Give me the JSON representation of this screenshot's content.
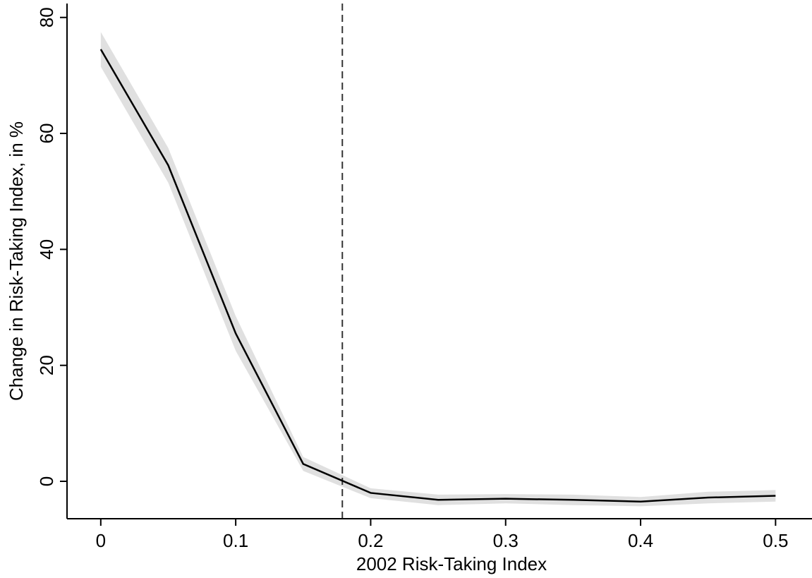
{
  "chart_data": {
    "type": "line",
    "xlabel": "2002 Risk-Taking Index",
    "ylabel": "Change in Risk-Taking Index, in %",
    "x": [
      0,
      0.05,
      0.1,
      0.15,
      0.2,
      0.25,
      0.3,
      0.35,
      0.4,
      0.45,
      0.5
    ],
    "values": [
      74.5,
      54.5,
      25.5,
      3,
      -2,
      -3.2,
      -3,
      -3.2,
      -3.5,
      -2.8,
      -2.5
    ],
    "color": "#000000",
    "band": {
      "upper": [
        77.5,
        57.5,
        28.5,
        4.2,
        -1.2,
        -2.3,
        -2.2,
        -2.3,
        -2.7,
        -1.8,
        -1.5
      ],
      "lower": [
        71.5,
        51.5,
        22.5,
        1.8,
        -2.9,
        -4.1,
        -3.8,
        -4.1,
        -4.3,
        -3.8,
        -3.5
      ],
      "color": "#e0e0e0"
    },
    "vline": 0.179,
    "xlim": [
      -0.025,
      0.527
    ],
    "xticks": [
      0,
      0.1,
      0.2,
      0.3,
      0.4,
      0.5
    ],
    "ylim": [
      -6.45,
      82.4
    ],
    "yticks": [
      0,
      20,
      40,
      60,
      80
    ]
  }
}
